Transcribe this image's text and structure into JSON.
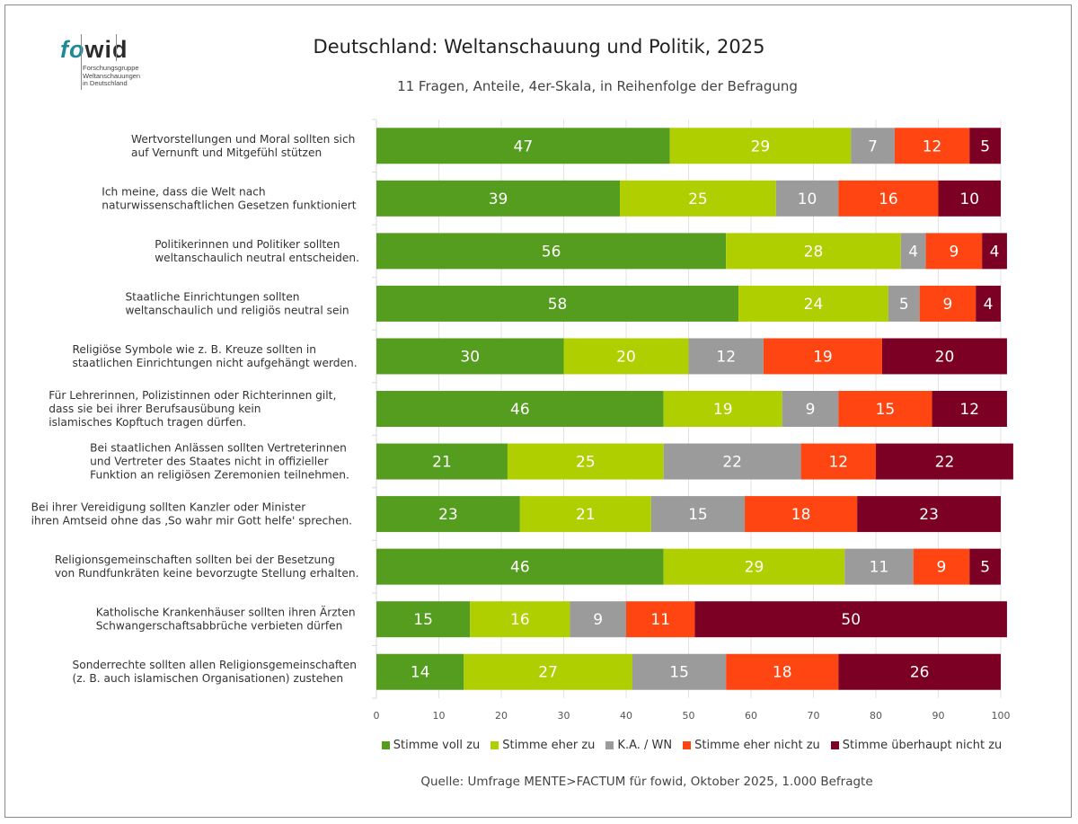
{
  "logo": {
    "brand_part1": "fo",
    "brand_part2": "wid",
    "subtitle": "Forschungsgruppe\nWeltanschauungen\nin Deutschland"
  },
  "chart_data": {
    "type": "bar",
    "orientation": "horizontal",
    "stacked": true,
    "title": "Deutschland: Weltanschauung und Politik, 2025",
    "subtitle": "11 Fragen, Anteile, 4er-Skala, in Reihenfolge der Befragung",
    "xlabel": "",
    "ylabel": "",
    "xlim": [
      0,
      100
    ],
    "xticks": [
      0,
      10,
      20,
      30,
      40,
      50,
      60,
      70,
      80,
      90,
      100
    ],
    "grid": true,
    "legend_position": "bottom",
    "categories": [
      "Wertvorstellungen und Moral sollten sich\nauf Vernunft und Mitgefühl stützen",
      "Ich meine, dass die Welt nach\nnaturwissenschaftlichen Gesetzen funktioniert",
      "Politikerinnen und Politiker sollten\nweltanschaulich neutral entscheiden.",
      "Staatliche Einrichtungen sollten\nweltanschaulich und religiös neutral sein",
      "Religiöse Symbole wie z. B. Kreuze sollten in\nstaatlichen Einrichtungen nicht aufgehängt werden.",
      "Für Lehrerinnen, Polizistinnen oder Richterinnen gilt,\ndass sie bei ihrer Berufsausübung kein\nislamisches Kopftuch tragen dürfen.",
      "Bei staatlichen Anlässen sollten Vertreterinnen\nund Vertreter des Staates nicht in offizieller\nFunktion an religiösen Zeremonien teilnehmen.",
      "Bei ihrer Vereidigung sollten Kanzler oder Minister\nihren Amtseid ohne das ‚So wahr mir Gott helfe' sprechen.",
      "Religionsgemeinschaften sollten bei der Besetzung\nvon Rundfunkräten keine bevorzugte Stellung erhalten.",
      "Katholische Krankenhäuser sollten ihren Ärzten\nSchwangerschaftsabbrüche verbieten dürfen",
      "Sonderrechte sollten allen Religionsgemeinschaften\n(z. B. auch islamischen Organisationen) zustehen"
    ],
    "series": [
      {
        "name": "Stimme voll zu",
        "color": "#559d1e",
        "values": [
          47,
          39,
          56,
          58,
          30,
          46,
          21,
          23,
          46,
          15,
          14
        ]
      },
      {
        "name": "Stimme eher zu",
        "color": "#b0cf00",
        "values": [
          29,
          25,
          28,
          24,
          20,
          19,
          25,
          21,
          29,
          16,
          27
        ]
      },
      {
        "name": "K.A. / WN",
        "color": "#9b9b9b",
        "values": [
          7,
          10,
          4,
          5,
          12,
          9,
          22,
          15,
          11,
          9,
          15
        ]
      },
      {
        "name": "Stimme eher nicht zu",
        "color": "#ff4612",
        "values": [
          12,
          16,
          9,
          9,
          19,
          15,
          12,
          18,
          9,
          11,
          18
        ]
      },
      {
        "name": "Stimme überhaupt nicht zu",
        "color": "#7c0023",
        "values": [
          5,
          10,
          4,
          4,
          20,
          12,
          22,
          23,
          5,
          50,
          26
        ]
      }
    ],
    "source": "Quelle: Umfrage MENTE>FACTUM für fowid, Oktober 2025, 1.000 Befragte"
  }
}
